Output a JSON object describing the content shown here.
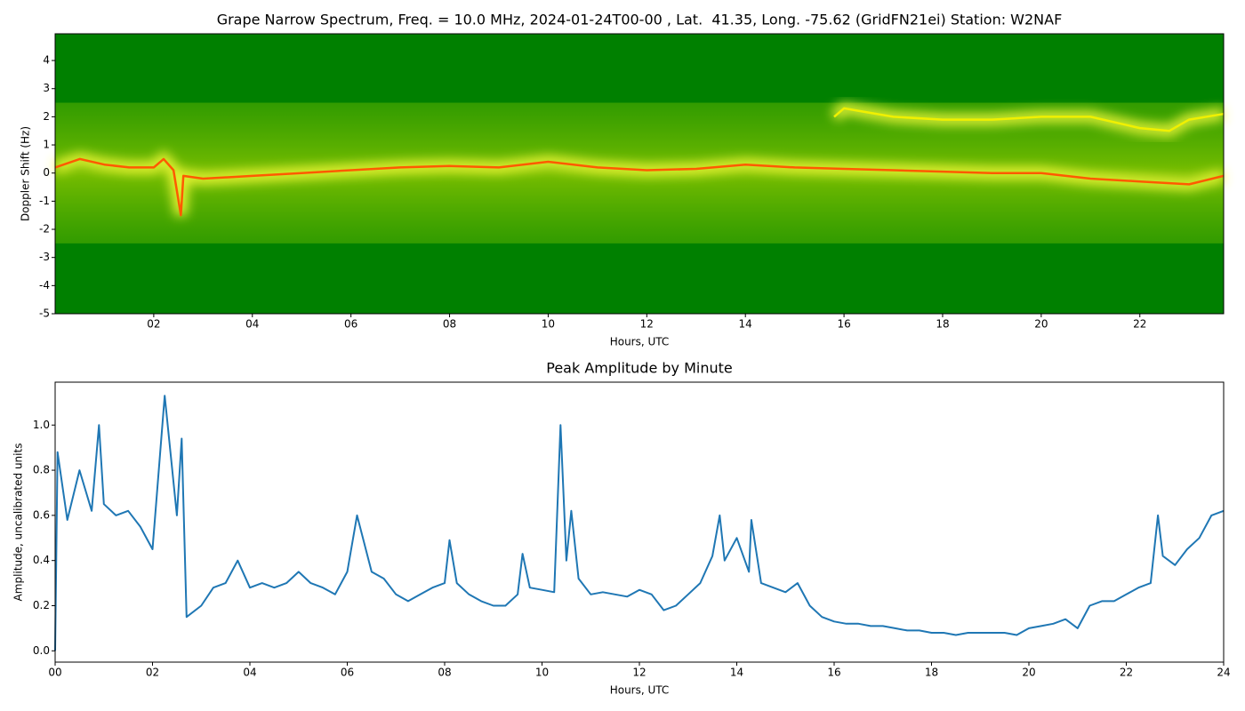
{
  "chart_data": [
    {
      "type": "spectrogram",
      "title": "Grape Narrow Spectrum, Freq. = 10.0 MHz, 2024-01-24T00-00 , Lat.  41.35, Long. -75.62 (GridFN21ei) Station: W2NAF",
      "xlabel": "Hours, UTC",
      "ylabel": "Doppler Shift (Hz)",
      "background": "#008000",
      "xlim": [
        0,
        23.7
      ],
      "ylim": [
        -5,
        4.95
      ],
      "xticks": [
        {
          "value": 2,
          "label": "02"
        },
        {
          "value": 4,
          "label": "04"
        },
        {
          "value": 6,
          "label": "06"
        },
        {
          "value": 8,
          "label": "08"
        },
        {
          "value": 10,
          "label": "10"
        },
        {
          "value": 12,
          "label": "12"
        },
        {
          "value": 14,
          "label": "14"
        },
        {
          "value": 16,
          "label": "16"
        },
        {
          "value": 18,
          "label": "18"
        },
        {
          "value": 20,
          "label": "20"
        },
        {
          "value": 22,
          "label": "22"
        }
      ],
      "yticks": [
        -5,
        -4,
        -3,
        -2,
        -1,
        0,
        1,
        2,
        3,
        4
      ],
      "series": [
        {
          "color": "#ff5a00",
          "x": [
            0,
            0.5,
            1,
            1.5,
            2,
            2.2,
            2.4,
            2.55,
            2.6,
            3,
            4,
            5,
            6,
            7,
            8,
            9,
            10,
            11,
            12,
            13,
            14,
            15,
            16,
            17,
            18,
            19,
            20,
            21,
            22,
            23,
            23.7
          ],
          "values": [
            0.2,
            0.5,
            0.3,
            0.2,
            0.2,
            0.5,
            0.1,
            -1.5,
            -0.1,
            -0.2,
            -0.1,
            0.0,
            0.1,
            0.2,
            0.25,
            0.2,
            0.4,
            0.2,
            0.1,
            0.15,
            0.3,
            0.2,
            0.15,
            0.1,
            0.05,
            0.0,
            0.0,
            -0.2,
            -0.3,
            -0.4,
            -0.1
          ]
        },
        {
          "color": "#f0f000",
          "x": [
            15.8,
            16,
            17,
            18,
            19,
            20,
            21,
            22,
            22.6,
            23,
            23.7
          ],
          "values": [
            2.0,
            2.3,
            2.0,
            1.9,
            1.9,
            2.0,
            2.0,
            1.6,
            1.5,
            1.9,
            2.1
          ]
        }
      ]
    },
    {
      "type": "line",
      "title": "Peak Amplitude by Minute",
      "xlabel": "Hours, UTC",
      "ylabel": "Amplitude, uncalibrated units",
      "xlim": [
        0,
        24
      ],
      "ylim": [
        -0.05,
        1.19
      ],
      "xticks": [
        {
          "value": 0,
          "label": "00"
        },
        {
          "value": 2,
          "label": "02"
        },
        {
          "value": 4,
          "label": "04"
        },
        {
          "value": 6,
          "label": "06"
        },
        {
          "value": 8,
          "label": "08"
        },
        {
          "value": 10,
          "label": "10"
        },
        {
          "value": 12,
          "label": "12"
        },
        {
          "value": 14,
          "label": "14"
        },
        {
          "value": 16,
          "label": "16"
        },
        {
          "value": 18,
          "label": "18"
        },
        {
          "value": 20,
          "label": "20"
        },
        {
          "value": 22,
          "label": "22"
        },
        {
          "value": 24,
          "label": "24"
        }
      ],
      "yticks": [
        {
          "value": 0,
          "label": "0.0"
        },
        0.2,
        0.4,
        0.6,
        0.8,
        {
          "value": 1,
          "label": "1.0"
        }
      ],
      "series": [
        {
          "color": "#1f77b4",
          "x": [
            0,
            0.05,
            0.25,
            0.5,
            0.75,
            0.9,
            1,
            1.25,
            1.5,
            1.75,
            2,
            2.25,
            2.5,
            2.6,
            2.7,
            3,
            3.25,
            3.5,
            3.75,
            4,
            4.25,
            4.5,
            4.75,
            5,
            5.25,
            5.5,
            5.75,
            6,
            6.2,
            6.5,
            6.75,
            7,
            7.25,
            7.5,
            7.75,
            8,
            8.1,
            8.25,
            8.5,
            8.75,
            9,
            9.25,
            9.5,
            9.6,
            9.75,
            10,
            10.25,
            10.38,
            10.5,
            10.6,
            10.75,
            11,
            11.25,
            11.5,
            11.75,
            12,
            12.25,
            12.5,
            12.75,
            13,
            13.25,
            13.5,
            13.65,
            13.75,
            14,
            14.25,
            14.3,
            14.5,
            14.75,
            15,
            15.25,
            15.5,
            15.75,
            16,
            16.25,
            16.5,
            16.75,
            17,
            17.25,
            17.5,
            17.75,
            18,
            18.25,
            18.5,
            18.75,
            19,
            19.25,
            19.5,
            19.75,
            20,
            20.25,
            20.5,
            20.75,
            21,
            21.25,
            21.5,
            21.75,
            22,
            22.25,
            22.5,
            22.65,
            22.75,
            23,
            23.25,
            23.5,
            23.75,
            24
          ],
          "values": [
            0.0,
            0.88,
            0.58,
            0.8,
            0.62,
            1.0,
            0.65,
            0.6,
            0.62,
            0.55,
            0.45,
            1.13,
            0.6,
            0.94,
            0.15,
            0.2,
            0.28,
            0.3,
            0.4,
            0.28,
            0.3,
            0.28,
            0.3,
            0.35,
            0.3,
            0.28,
            0.25,
            0.35,
            0.6,
            0.35,
            0.32,
            0.25,
            0.22,
            0.25,
            0.28,
            0.3,
            0.49,
            0.3,
            0.25,
            0.22,
            0.2,
            0.2,
            0.25,
            0.43,
            0.28,
            0.27,
            0.26,
            1.0,
            0.4,
            0.62,
            0.32,
            0.25,
            0.26,
            0.25,
            0.24,
            0.27,
            0.25,
            0.18,
            0.2,
            0.25,
            0.3,
            0.42,
            0.6,
            0.4,
            0.5,
            0.35,
            0.58,
            0.3,
            0.28,
            0.26,
            0.3,
            0.2,
            0.15,
            0.13,
            0.12,
            0.12,
            0.11,
            0.11,
            0.1,
            0.09,
            0.09,
            0.08,
            0.08,
            0.07,
            0.08,
            0.08,
            0.08,
            0.08,
            0.07,
            0.1,
            0.11,
            0.12,
            0.14,
            0.1,
            0.2,
            0.22,
            0.22,
            0.25,
            0.28,
            0.3,
            0.6,
            0.42,
            0.38,
            0.45,
            0.5,
            0.6,
            0.62
          ]
        }
      ]
    }
  ]
}
